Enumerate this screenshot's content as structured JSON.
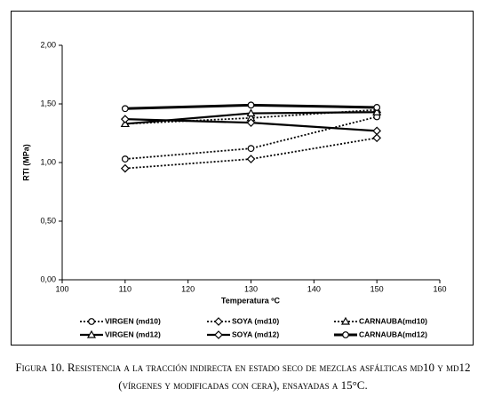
{
  "chart_data": {
    "type": "line",
    "x_label": "Temperatura ºC",
    "y_label": "RTI (MPa)",
    "x": [
      110,
      130,
      150
    ],
    "xlim": [
      100,
      160
    ],
    "xticks": [
      100,
      110,
      120,
      130,
      140,
      150,
      160
    ],
    "ylim": [
      0,
      2
    ],
    "yticks": [
      {
        "value": 0,
        "label": "0,00"
      },
      {
        "value": 0.5,
        "label": "0,50"
      },
      {
        "value": 1,
        "label": "1,00"
      },
      {
        "value": 1.5,
        "label": "1,50"
      },
      {
        "value": 2,
        "label": "2,00"
      }
    ],
    "series": [
      {
        "name": "VIRGEN (md10)",
        "color": "#000000",
        "dashed": true,
        "marker": "circle",
        "values": [
          1.03,
          1.12,
          1.39
        ]
      },
      {
        "name": "SOYA (md10)",
        "color": "#000000",
        "dashed": true,
        "marker": "diamond",
        "values": [
          0.95,
          1.03,
          1.21
        ]
      },
      {
        "name": "CARNAUBA(md10)",
        "color": "#000000",
        "dashed": true,
        "marker": "triangle",
        "values": [
          1.33,
          1.38,
          1.45
        ]
      },
      {
        "name": "VIRGEN (md12)",
        "color": "#000000",
        "dashed": false,
        "marker": "triangle",
        "values": [
          1.33,
          1.42,
          1.43
        ]
      },
      {
        "name": "SOYA (md12)",
        "color": "#000000",
        "dashed": false,
        "marker": "diamond",
        "values": [
          1.37,
          1.34,
          1.27
        ]
      },
      {
        "name": "CARNAUBA(md12)",
        "color": "#000000",
        "dashed": false,
        "marker": "circle",
        "values": [
          1.46,
          1.49,
          1.47
        ]
      }
    ],
    "caption": "Figura 10. Resistencia a la tracción indirecta en estado seco de mezclas asfálticas md10 y md12 (vírgenes y modificadas con cera), ensayadas a 15°C."
  }
}
